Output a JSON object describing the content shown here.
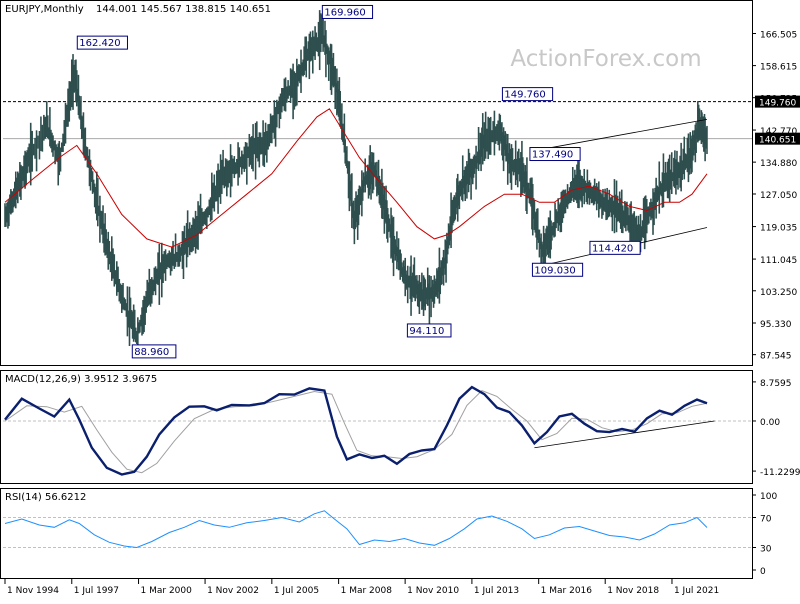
{
  "chart_data": [
    {
      "type": "ohlc",
      "panel": "price",
      "symbol_label": "EURJPY,Monthly",
      "ohlc_label": "144.001 145.567 138.815 140.651",
      "watermark": "ActionForex.com",
      "ylim": [
        85.0,
        174.5
      ],
      "y_ticks": [
        "166.505",
        "158.615",
        "150.725",
        "142.770",
        "134.880",
        "127.050",
        "119.035",
        "111.045",
        "103.250",
        "95.330",
        "87.545"
      ],
      "y_tick_values": [
        166.505,
        158.615,
        150.725,
        142.77,
        134.88,
        127.05,
        119.035,
        111.045,
        103.25,
        95.33,
        87.545
      ],
      "current_price_label": "140.651",
      "current_price": 140.651,
      "resistance_label": "149.760",
      "resistance": 149.76,
      "x_ticks": [
        "1 Nov 1994",
        "1 Jul 1997",
        "1 Mar 2000",
        "1 Nov 2002",
        "1 Jul 2005",
        "1 Mar 2008",
        "1 Nov 2010",
        "1 Jul 2013",
        "1 Mar 2016",
        "1 Nov 2018",
        "1 Jul 2021"
      ],
      "x_tick_values": [
        1994.83,
        1997.5,
        2000.17,
        2002.83,
        2005.5,
        2008.17,
        2010.83,
        2013.5,
        2016.17,
        2018.83,
        2021.5
      ],
      "xlim": [
        1994.75,
        2024.7
      ],
      "annotations": [
        {
          "label": "162.420",
          "x": 1997.8,
          "y": 162.42
        },
        {
          "label": "88.960",
          "x": 2000.0,
          "y": 88.96
        },
        {
          "label": "169.960",
          "x": 2007.6,
          "y": 169.96
        },
        {
          "label": "94.110",
          "x": 2011.0,
          "y": 94.11
        },
        {
          "label": "149.760",
          "x": 2014.8,
          "y": 149.76
        },
        {
          "label": "137.490",
          "x": 2015.9,
          "y": 137.49
        },
        {
          "label": "109.030",
          "x": 2016.0,
          "y": 109.03
        },
        {
          "label": "114.420",
          "x": 2018.3,
          "y": 114.42
        }
      ],
      "channel_upper": [
        [
          2015.9,
          137.6
        ],
        [
          2022.9,
          145.4
        ]
      ],
      "channel_lower": [
        [
          2016.0,
          109.0
        ],
        [
          2022.9,
          118.8
        ]
      ],
      "series": [
        {
          "name": "Price",
          "color": "#2f4f4f",
          "x": [
            1994.83,
            1995.3,
            1995.8,
            1996.5,
            1997.0,
            1997.6,
            1998.0,
            1998.5,
            1999.0,
            1999.6,
            2000.1,
            2000.6,
            2001.2,
            2001.8,
            2002.3,
            2002.9,
            2003.5,
            2004.1,
            2004.7,
            2005.3,
            2005.9,
            2006.5,
            2007.0,
            2007.55,
            2008.0,
            2008.4,
            2008.8,
            2009.2,
            2009.6,
            2010.0,
            2010.4,
            2010.8,
            2011.2,
            2011.6,
            2012.0,
            2012.4,
            2012.8,
            2013.2,
            2013.6,
            2014.0,
            2014.6,
            2015.0,
            2015.5,
            2015.9,
            2016.3,
            2016.7,
            2017.2,
            2017.7,
            2018.2,
            2018.7,
            2019.2,
            2019.7,
            2020.2,
            2020.7,
            2021.2,
            2021.7,
            2022.2,
            2022.6,
            2022.9
          ],
          "values": [
            121.0,
            128.0,
            136.0,
            144.0,
            135.0,
            157.0,
            140.0,
            125.0,
            112.0,
            100.0,
            92.0,
            103.0,
            110.0,
            112.0,
            117.0,
            122.0,
            131.0,
            134.0,
            138.0,
            140.0,
            150.0,
            155.0,
            162.0,
            166.0,
            156.0,
            140.0,
            120.0,
            130.0,
            133.0,
            124.0,
            114.0,
            107.0,
            104.0,
            102.0,
            103.0,
            110.0,
            124.0,
            131.0,
            134.0,
            140.0,
            143.0,
            135.0,
            133.0,
            125.0,
            113.0,
            118.0,
            125.0,
            130.0,
            128.0,
            125.0,
            124.0,
            121.0,
            116.0,
            124.0,
            130.0,
            132.0,
            136.0,
            144.0,
            140.651
          ]
        },
        {
          "name": "MA",
          "color": "#cc0000",
          "x": [
            1994.83,
            1996.0,
            1997.0,
            1997.7,
            1998.5,
            1999.5,
            2000.5,
            2001.5,
            2002.5,
            2003.5,
            2004.5,
            2005.5,
            2006.5,
            2007.3,
            2007.8,
            2008.3,
            2009.0,
            2009.8,
            2010.5,
            2011.3,
            2012.0,
            2012.5,
            2013.0,
            2014.0,
            2014.8,
            2015.5,
            2016.2,
            2016.8,
            2017.5,
            2018.2,
            2019.0,
            2019.8,
            2020.5,
            2021.2,
            2021.8,
            2022.3,
            2022.9
          ],
          "values": [
            125.0,
            131.0,
            136.0,
            139.0,
            132.0,
            122.0,
            116.0,
            114.0,
            117.0,
            122.0,
            127.0,
            132.0,
            140.0,
            146.0,
            148.0,
            143.0,
            136.0,
            130.0,
            125.0,
            119.0,
            116.0,
            117.0,
            119.0,
            124.0,
            127.0,
            127.0,
            125.0,
            125.0,
            128.0,
            129.0,
            127.0,
            124.0,
            123.0,
            125.0,
            125.0,
            127.0,
            132.0
          ]
        }
      ]
    },
    {
      "type": "line",
      "panel": "macd",
      "title": "MACD(12,26,9) 3.9512 3.9675",
      "y_ticks": [
        "8.7595",
        "0.00",
        "-11.2299"
      ],
      "y_tick_values": [
        8.7595,
        0.0,
        -11.2299
      ],
      "ylim": [
        -13.9,
        11.2
      ],
      "trendline": [
        [
          2016.0,
          -6.0
        ],
        [
          2023.2,
          0.0
        ]
      ],
      "series": [
        {
          "name": "MACD",
          "color": "#0a1f6e",
          "x": [
            1994.83,
            1995.5,
            1996.2,
            1996.8,
            1997.4,
            1997.8,
            1998.3,
            1998.9,
            1999.5,
            2000.0,
            2000.5,
            2001.0,
            2001.6,
            2002.2,
            2002.8,
            2003.3,
            2003.9,
            2004.6,
            2005.2,
            2005.8,
            2006.4,
            2007.0,
            2007.6,
            2008.1,
            2008.5,
            2009.0,
            2009.5,
            2010.0,
            2010.5,
            2011.0,
            2011.5,
            2012.0,
            2012.5,
            2013.0,
            2013.5,
            2014.0,
            2014.5,
            2015.0,
            2015.5,
            2016.0,
            2016.5,
            2017.0,
            2017.5,
            2018.0,
            2018.5,
            2019.0,
            2019.5,
            2020.0,
            2020.5,
            2021.0,
            2021.5,
            2022.0,
            2022.5,
            2022.9
          ],
          "values": [
            0.3,
            5.0,
            2.8,
            1.0,
            4.8,
            0.3,
            -6.0,
            -10.5,
            -12.0,
            -11.4,
            -8.0,
            -3.0,
            0.8,
            3.2,
            3.3,
            2.4,
            3.6,
            3.5,
            4.0,
            6.0,
            5.9,
            7.3,
            6.8,
            -3.5,
            -8.6,
            -7.5,
            -8.3,
            -7.8,
            -9.6,
            -7.4,
            -6.6,
            -6.3,
            -1.0,
            5.0,
            7.6,
            6.0,
            3.0,
            2.0,
            -1.0,
            -5.0,
            -2.5,
            1.0,
            1.6,
            -0.6,
            -2.3,
            -2.5,
            -1.8,
            -2.4,
            0.6,
            2.3,
            1.4,
            3.4,
            4.8,
            3.9512
          ]
        },
        {
          "name": "Signal",
          "color": "#a0a0a0",
          "x": [
            1994.83,
            1995.7,
            1996.5,
            1997.2,
            1997.9,
            1998.5,
            1999.1,
            1999.7,
            2000.3,
            2000.9,
            2001.6,
            2002.4,
            2003.2,
            2004.0,
            2004.8,
            2005.6,
            2006.4,
            2007.2,
            2007.9,
            2008.4,
            2008.9,
            2009.5,
            2010.1,
            2010.7,
            2011.3,
            2012.0,
            2012.7,
            2013.3,
            2013.9,
            2014.5,
            2015.1,
            2015.7,
            2016.3,
            2016.9,
            2017.5,
            2018.1,
            2018.7,
            2019.3,
            2019.9,
            2020.5,
            2021.1,
            2021.7,
            2022.3,
            2022.9
          ],
          "values": [
            0.0,
            3.4,
            3.2,
            2.0,
            3.3,
            -2.0,
            -7.0,
            -10.8,
            -11.6,
            -9.5,
            -4.5,
            0.5,
            2.6,
            3.2,
            3.4,
            4.4,
            5.5,
            6.6,
            6.0,
            -0.5,
            -6.6,
            -7.8,
            -8.0,
            -8.4,
            -8.0,
            -6.4,
            -3.0,
            3.5,
            6.8,
            5.5,
            2.6,
            0.0,
            -4.2,
            -2.8,
            0.6,
            0.4,
            -1.5,
            -2.4,
            -2.0,
            -0.6,
            1.6,
            1.8,
            3.3,
            3.9675
          ]
        }
      ]
    },
    {
      "type": "line",
      "panel": "rsi",
      "title": "RSI(14) 56.6212",
      "y_ticks": [
        "100",
        "70",
        "30",
        "0"
      ],
      "y_tick_values": [
        100,
        70,
        30,
        0
      ],
      "ylim": [
        0,
        100
      ],
      "levels": [
        70,
        30
      ],
      "series": [
        {
          "name": "RSI",
          "color": "#1e90ff",
          "x": [
            1994.83,
            1995.5,
            1996.2,
            1996.8,
            1997.4,
            1997.8,
            1998.4,
            1999.0,
            1999.6,
            2000.1,
            2000.7,
            2001.4,
            2002.0,
            2002.6,
            2003.2,
            2003.8,
            2004.5,
            2005.2,
            2005.9,
            2006.6,
            2007.2,
            2007.6,
            2008.0,
            2008.5,
            2009.0,
            2009.6,
            2010.2,
            2010.8,
            2011.4,
            2012.0,
            2012.6,
            2013.2,
            2013.7,
            2014.3,
            2014.9,
            2015.5,
            2016.0,
            2016.6,
            2017.2,
            2017.8,
            2018.4,
            2019.0,
            2019.6,
            2020.2,
            2020.8,
            2021.4,
            2022.0,
            2022.5,
            2022.9
          ],
          "values": [
            62,
            68,
            60,
            57,
            67,
            62,
            47,
            37,
            32,
            30,
            38,
            50,
            57,
            66,
            60,
            57,
            63,
            66,
            70,
            64,
            75,
            79,
            68,
            55,
            34,
            40,
            38,
            42,
            36,
            33,
            42,
            55,
            68,
            72,
            65,
            55,
            42,
            47,
            56,
            58,
            52,
            46,
            44,
            40,
            48,
            60,
            63,
            70,
            56.6212
          ]
        }
      ]
    }
  ]
}
